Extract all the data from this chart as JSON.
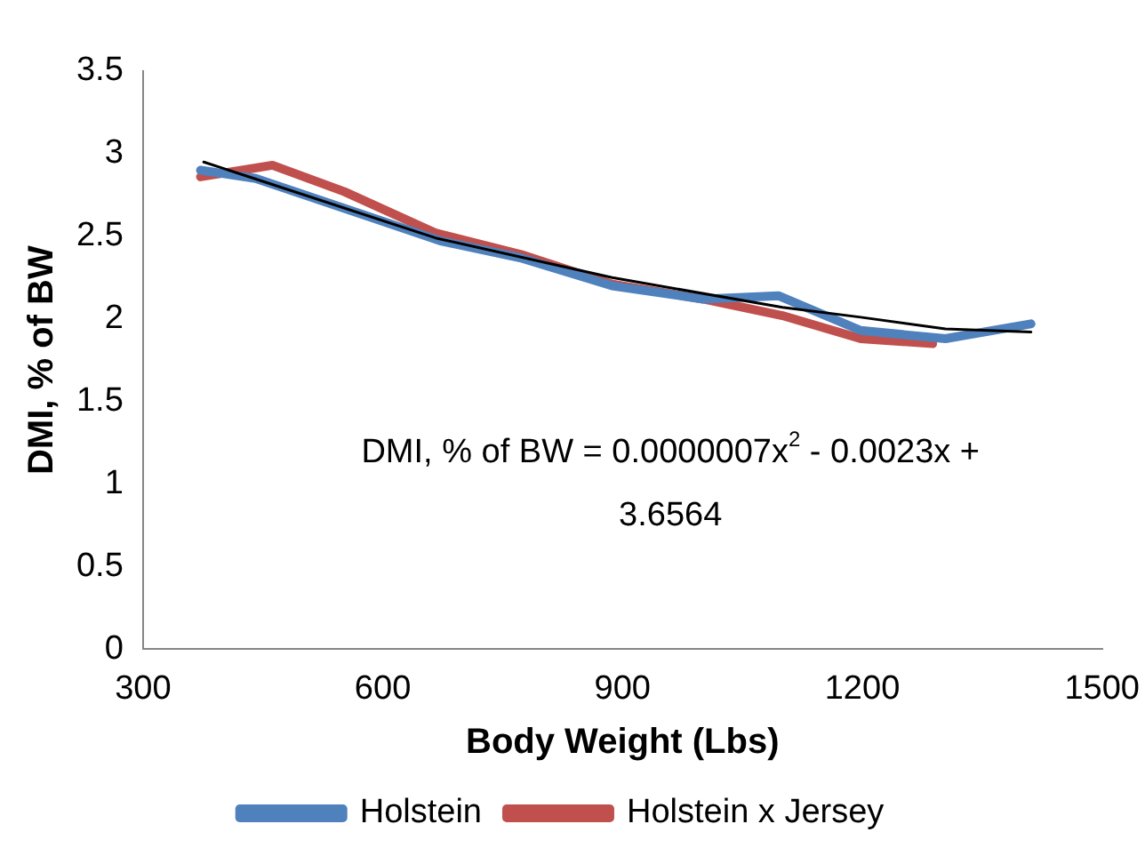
{
  "chart_data": {
    "type": "line",
    "xlabel": "Body Weight (Lbs)",
    "ylabel": "DMI, % of BW",
    "xlim": [
      300,
      1500
    ],
    "xticks": [
      300,
      600,
      900,
      1200,
      1500
    ],
    "ylim": [
      0,
      3.5
    ],
    "yticks": [
      0,
      0.5,
      1,
      1.5,
      2,
      2.5,
      3,
      3.5
    ],
    "grid": false,
    "legend": "bottom",
    "marker": "none",
    "line_style": "solid",
    "annotations": [
      "DMI, % of BW = 0.0000007x$^{2}$ - 0.0023x + 3.6564"
    ],
    "series": [
      {
        "name": "Holstein",
        "color": "#4f81bd",
        "x": [
          372,
          441,
          674,
          772,
          887,
          1001,
          1095,
          1198,
          1304,
          1411
        ],
        "values": [
          2.9,
          2.85,
          2.47,
          2.37,
          2.2,
          2.12,
          2.14,
          1.93,
          1.88,
          1.97
        ]
      },
      {
        "name": "Holstein x Jersey",
        "color": "#c0504d",
        "x": [
          372,
          462,
          552,
          666,
          773,
          887,
          1001,
          1100,
          1198,
          1288
        ],
        "values": [
          2.86,
          2.93,
          2.77,
          2.52,
          2.39,
          2.21,
          2.12,
          2.02,
          1.88,
          1.85
        ]
      },
      {
        "color": "#000000",
        "x": [
          376,
          666,
          887,
          1100,
          1198,
          1304,
          1411
        ],
        "values": [
          2.95,
          2.49,
          2.25,
          2.07,
          2.01,
          1.94,
          1.92
        ]
      }
    ]
  }
}
